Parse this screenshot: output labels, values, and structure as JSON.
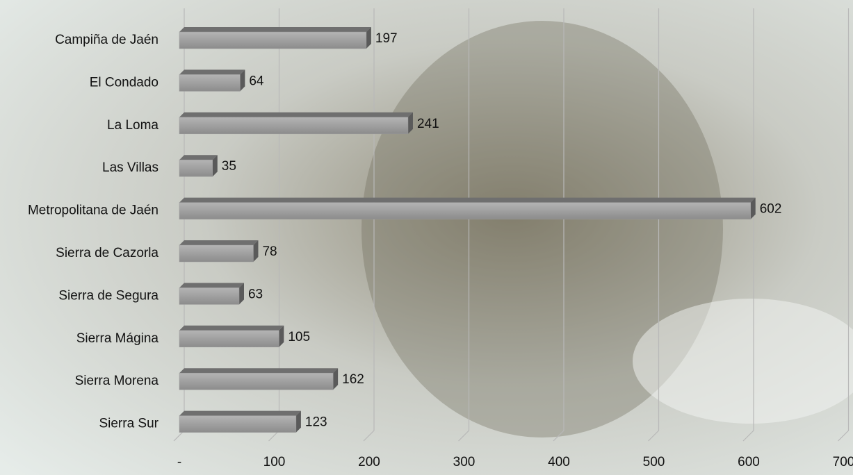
{
  "chart_data": {
    "type": "bar",
    "orientation": "horizontal",
    "categories": [
      "Campiña de Jaén",
      "El Condado",
      "La Loma",
      "Las Villas",
      "Metropolitana de Jaén",
      "Sierra de Cazorla",
      "Sierra de Segura",
      "Sierra Mágina",
      "Sierra Morena",
      "Sierra Sur"
    ],
    "values": [
      197,
      64,
      241,
      35,
      602,
      78,
      63,
      105,
      162,
      123
    ],
    "color": "#9a9a9a",
    "xlim": [
      0,
      700
    ],
    "xticks": [
      {
        "value": 0,
        "label": "-"
      },
      100,
      200,
      300,
      400,
      500,
      600,
      700
    ],
    "grid": true
  }
}
